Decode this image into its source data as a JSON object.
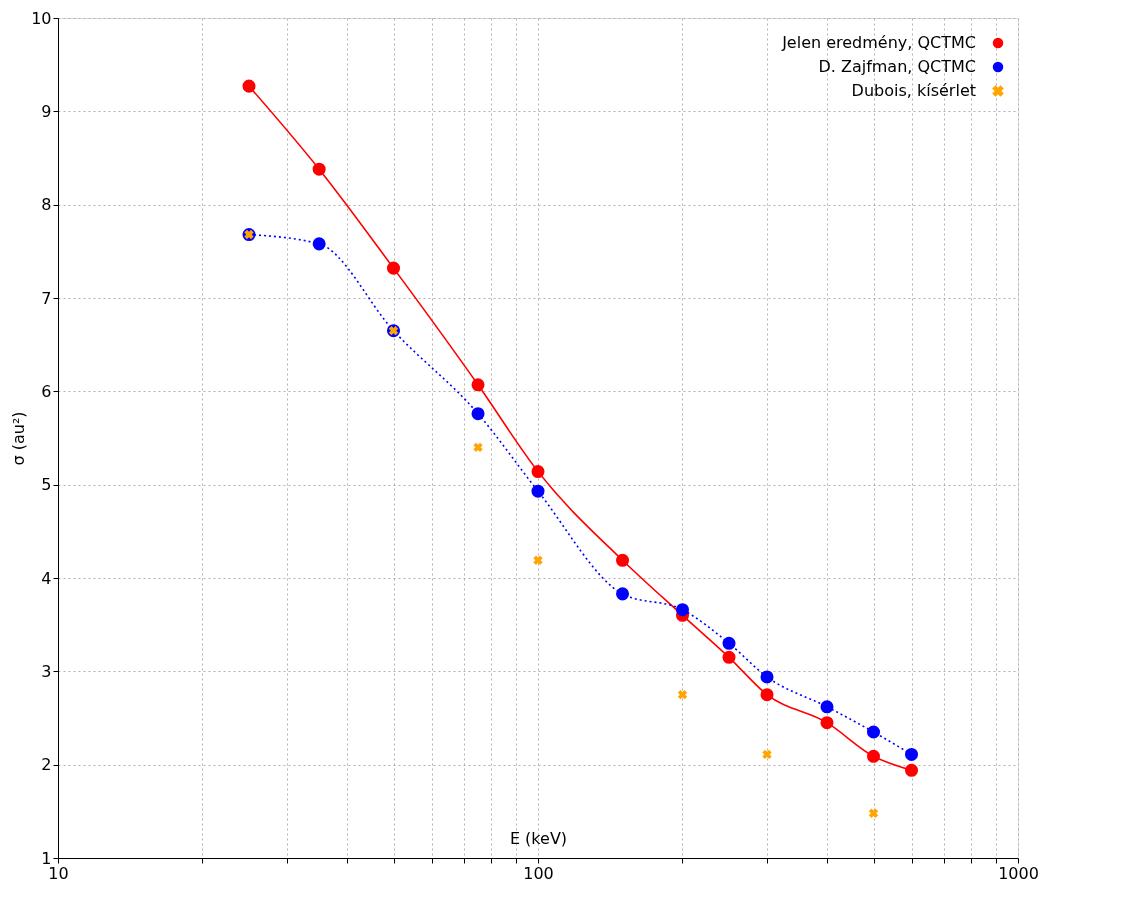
{
  "chart_data": {
    "type": "line",
    "xlabel": "E (keV)",
    "ylabel": "σ (au²)",
    "log": "x",
    "grid": true,
    "legend": "top right",
    "xlim": [
      10,
      1000
    ],
    "ylim": [
      1,
      10
    ],
    "xticks": [
      10,
      {
        "value": 20,
        "label": null
      },
      {
        "value": 30,
        "label": null
      },
      {
        "value": 40,
        "label": null
      },
      {
        "value": 50,
        "label": null
      },
      {
        "value": 60,
        "label": null
      },
      {
        "value": 70,
        "label": null
      },
      {
        "value": 80,
        "label": null
      },
      {
        "value": 90,
        "label": null
      },
      100,
      {
        "value": 200,
        "label": null
      },
      {
        "value": 300,
        "label": null
      },
      {
        "value": 400,
        "label": null
      },
      {
        "value": 500,
        "label": null
      },
      {
        "value": 600,
        "label": null
      },
      {
        "value": 700,
        "label": null
      },
      {
        "value": 800,
        "label": null
      },
      {
        "value": 900,
        "label": null
      },
      1000
    ],
    "yticks": [
      1,
      2,
      3,
      4,
      5,
      6,
      7,
      8,
      9,
      10
    ],
    "series": [
      {
        "name": "Jelen eredmény, QCTMC",
        "color": "#ff0000",
        "marker": "circle",
        "line_style": "solid",
        "x": [
          25,
          35,
          50,
          75,
          100,
          150,
          200,
          250,
          300,
          400,
          500,
          600
        ],
        "values": [
          9.27,
          8.38,
          7.32,
          6.07,
          5.14,
          4.19,
          3.6,
          3.15,
          2.75,
          2.45,
          2.09,
          1.94
        ]
      },
      {
        "name": "D. Zajfman, QCTMC",
        "color": "#0000ff",
        "marker": "circle",
        "line_style": "dotted",
        "x": [
          25,
          35,
          50,
          75,
          100,
          150,
          200,
          250,
          300,
          400,
          500,
          600
        ],
        "values": [
          7.68,
          7.58,
          6.65,
          5.76,
          4.93,
          3.83,
          3.66,
          3.3,
          2.94,
          2.62,
          2.35,
          2.11
        ]
      },
      {
        "name": "Dubois, kísérlet",
        "type": "scatter",
        "color": "#ffa500",
        "marker": "cross",
        "x": [
          25,
          50,
          75,
          100,
          200,
          300,
          500
        ],
        "values": [
          7.68,
          6.65,
          5.4,
          4.19,
          2.75,
          2.11,
          1.48
        ]
      }
    ]
  }
}
